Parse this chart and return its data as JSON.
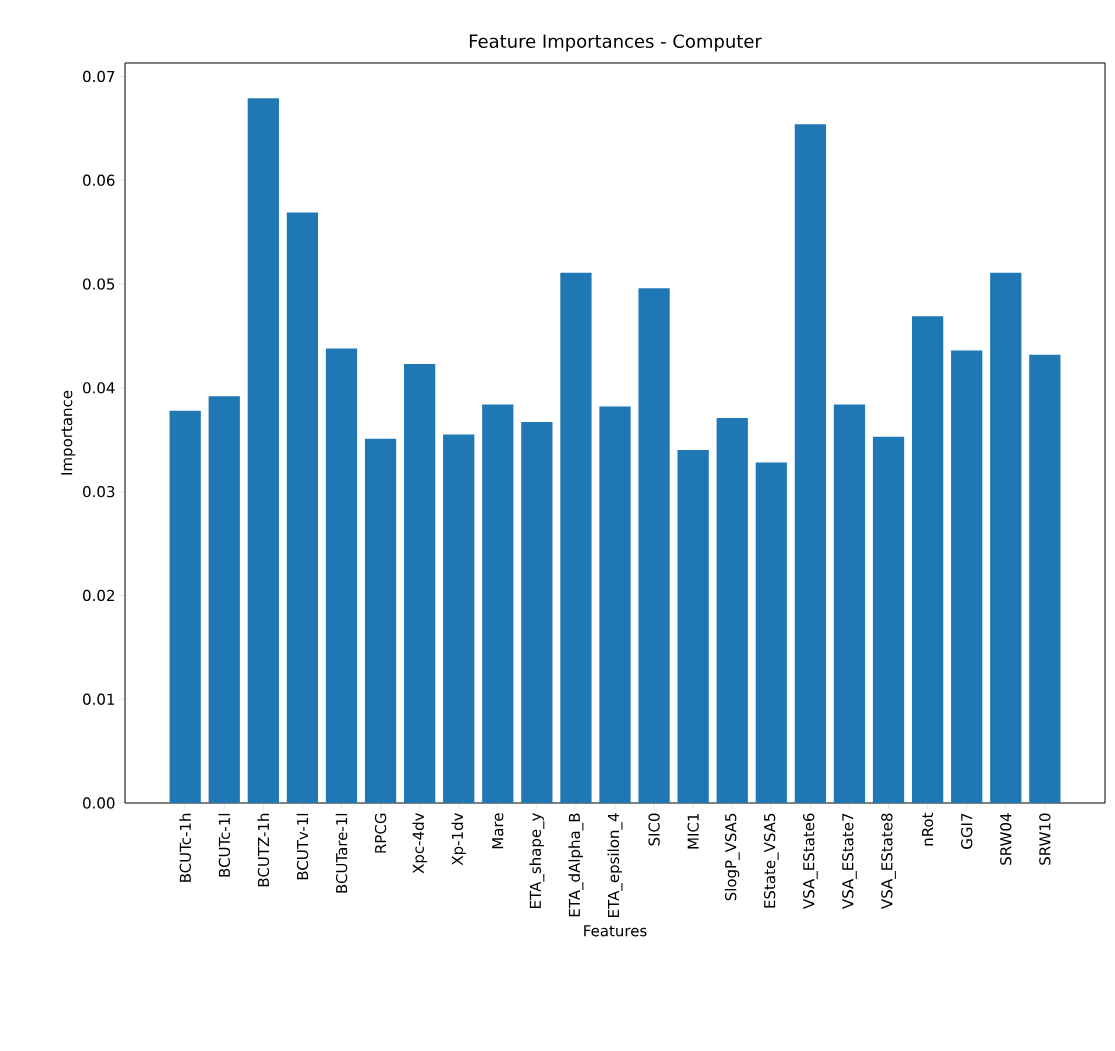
{
  "chart_data": {
    "type": "bar",
    "title": "Feature Importances - Computer",
    "xlabel": "Features",
    "ylabel": "Importance",
    "categories": [
      "BCUTc-1h",
      "BCUTc-1l",
      "BCUTZ-1h",
      "BCUTv-1l",
      "BCUTare-1l",
      "RPCG",
      "Xpc-4dv",
      "Xp-1dv",
      "Mare",
      "ETA_shape_y",
      "ETA_dAlpha_B",
      "ETA_epsilon_4",
      "SIC0",
      "MIC1",
      "SlogP_VSA5",
      "EState_VSA5",
      "VSA_EState6",
      "VSA_EState7",
      "VSA_EState8",
      "nRot",
      "GGI7",
      "SRW04",
      "SRW10"
    ],
    "values": [
      0.0378,
      0.0392,
      0.0679,
      0.0569,
      0.0438,
      0.0351,
      0.0423,
      0.0355,
      0.0384,
      0.0367,
      0.0511,
      0.0382,
      0.0496,
      0.034,
      0.0371,
      0.0328,
      0.0654,
      0.0384,
      0.0353,
      0.0469,
      0.0436,
      0.0511,
      0.0432
    ],
    "color": "#1f77b4",
    "ylim": [
      0,
      0.0713
    ],
    "yticks": [
      {
        "value": 0,
        "label": "0.00"
      },
      {
        "value": 0.01,
        "label": "0.01"
      },
      {
        "value": 0.02,
        "label": "0.02"
      },
      {
        "value": 0.03,
        "label": "0.03"
      },
      {
        "value": 0.04,
        "label": "0.04"
      },
      {
        "value": 0.05,
        "label": "0.05"
      },
      {
        "value": 0.06,
        "label": "0.06"
      },
      {
        "value": 0.07,
        "label": "0.07"
      }
    ]
  }
}
